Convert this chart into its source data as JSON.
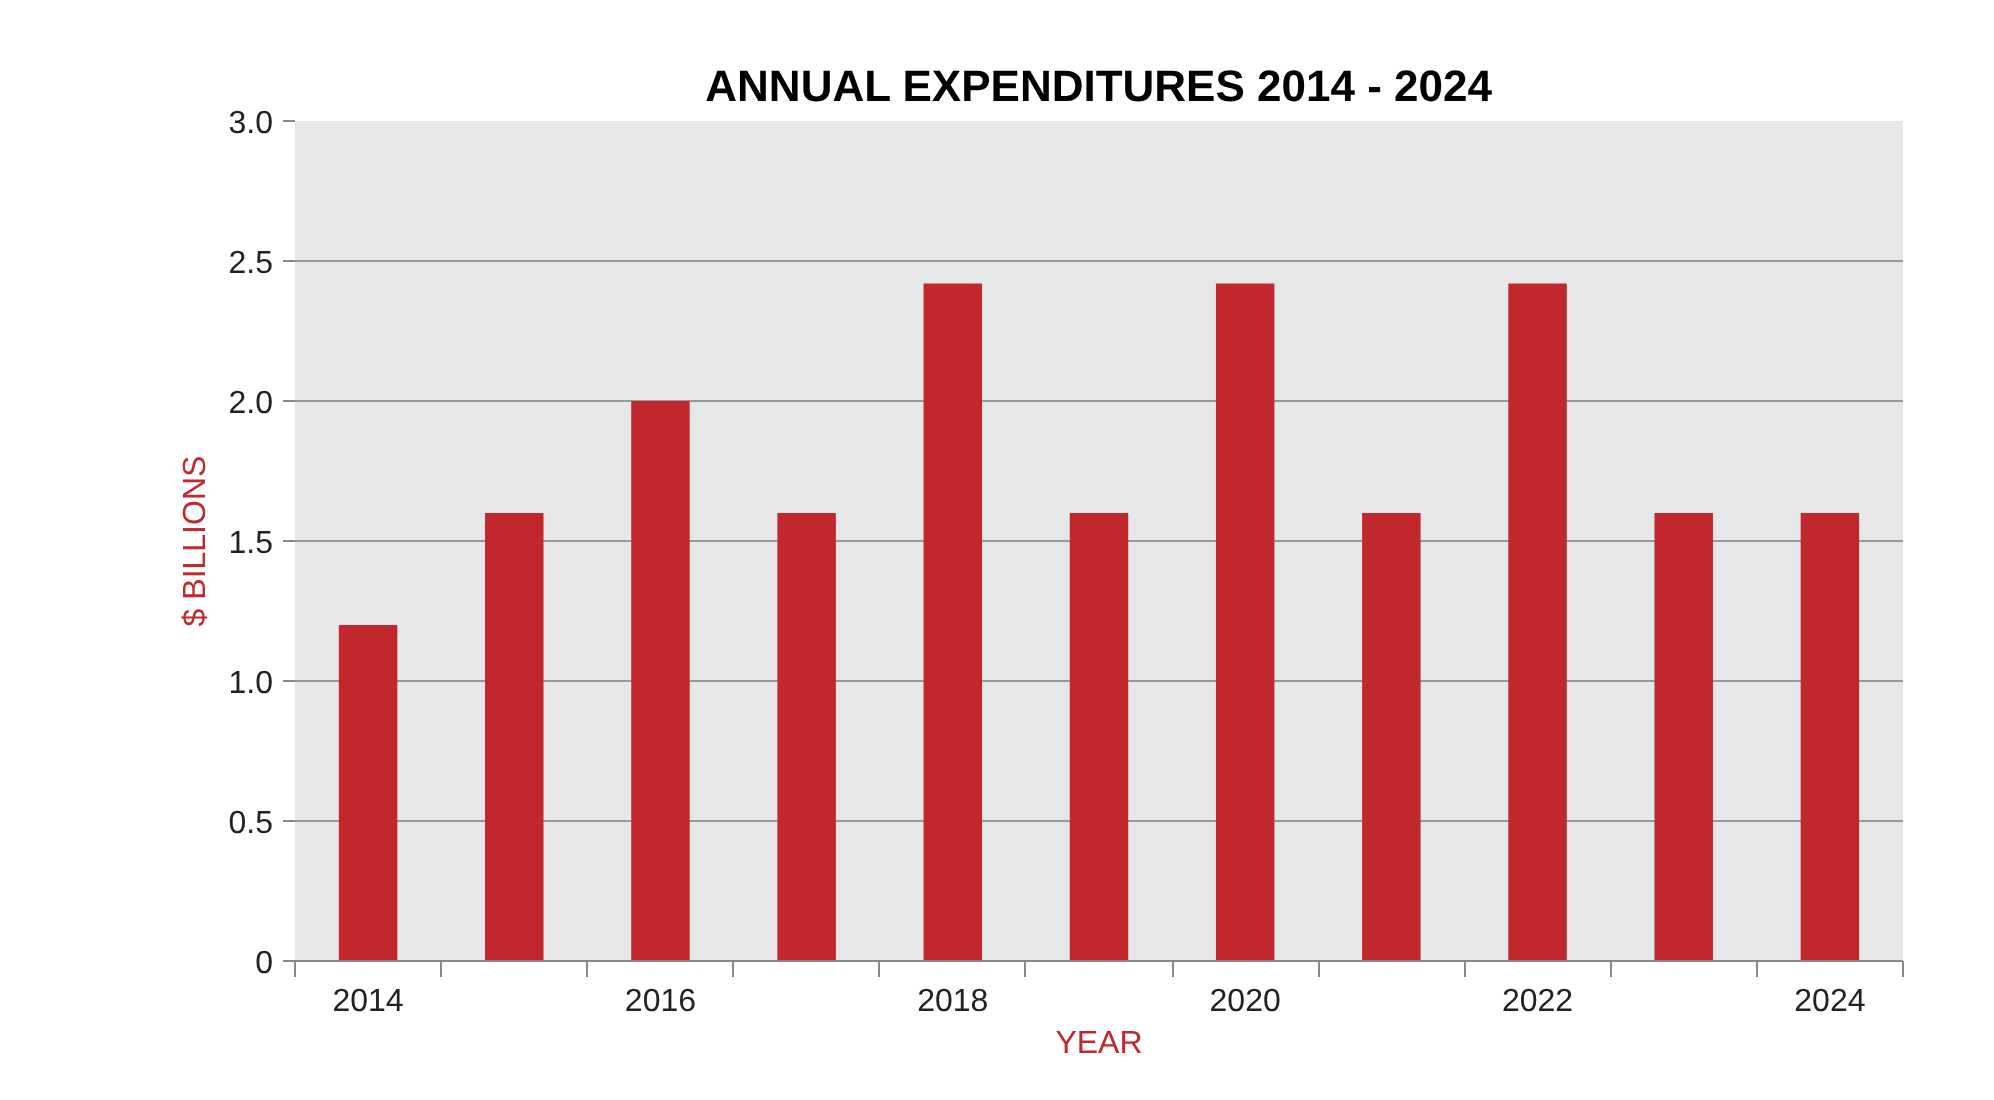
{
  "chart_data": {
    "type": "bar",
    "title": "ANNUAL EXPENDITURES 2014 - 2024",
    "xlabel": "YEAR",
    "ylabel": "$ BILLIONS",
    "categories": [
      "2014",
      null,
      "2016",
      null,
      "2018",
      null,
      "2020",
      null,
      "2022",
      null,
      "2024"
    ],
    "values": [
      1.2,
      1.6,
      2.0,
      1.6,
      2.42,
      1.6,
      2.42,
      1.6,
      2.42,
      1.6,
      1.6
    ],
    "color": "#c1272d",
    "ylim": [
      0,
      3.0
    ],
    "yticks": [
      {
        "value": 0,
        "label": "0"
      },
      0.5,
      {
        "value": 1,
        "label": "1.0"
      },
      1.5,
      {
        "value": 2,
        "label": "2.0"
      },
      2.5,
      {
        "value": 3,
        "label": "3.0"
      }
    ],
    "grid": "y"
  }
}
